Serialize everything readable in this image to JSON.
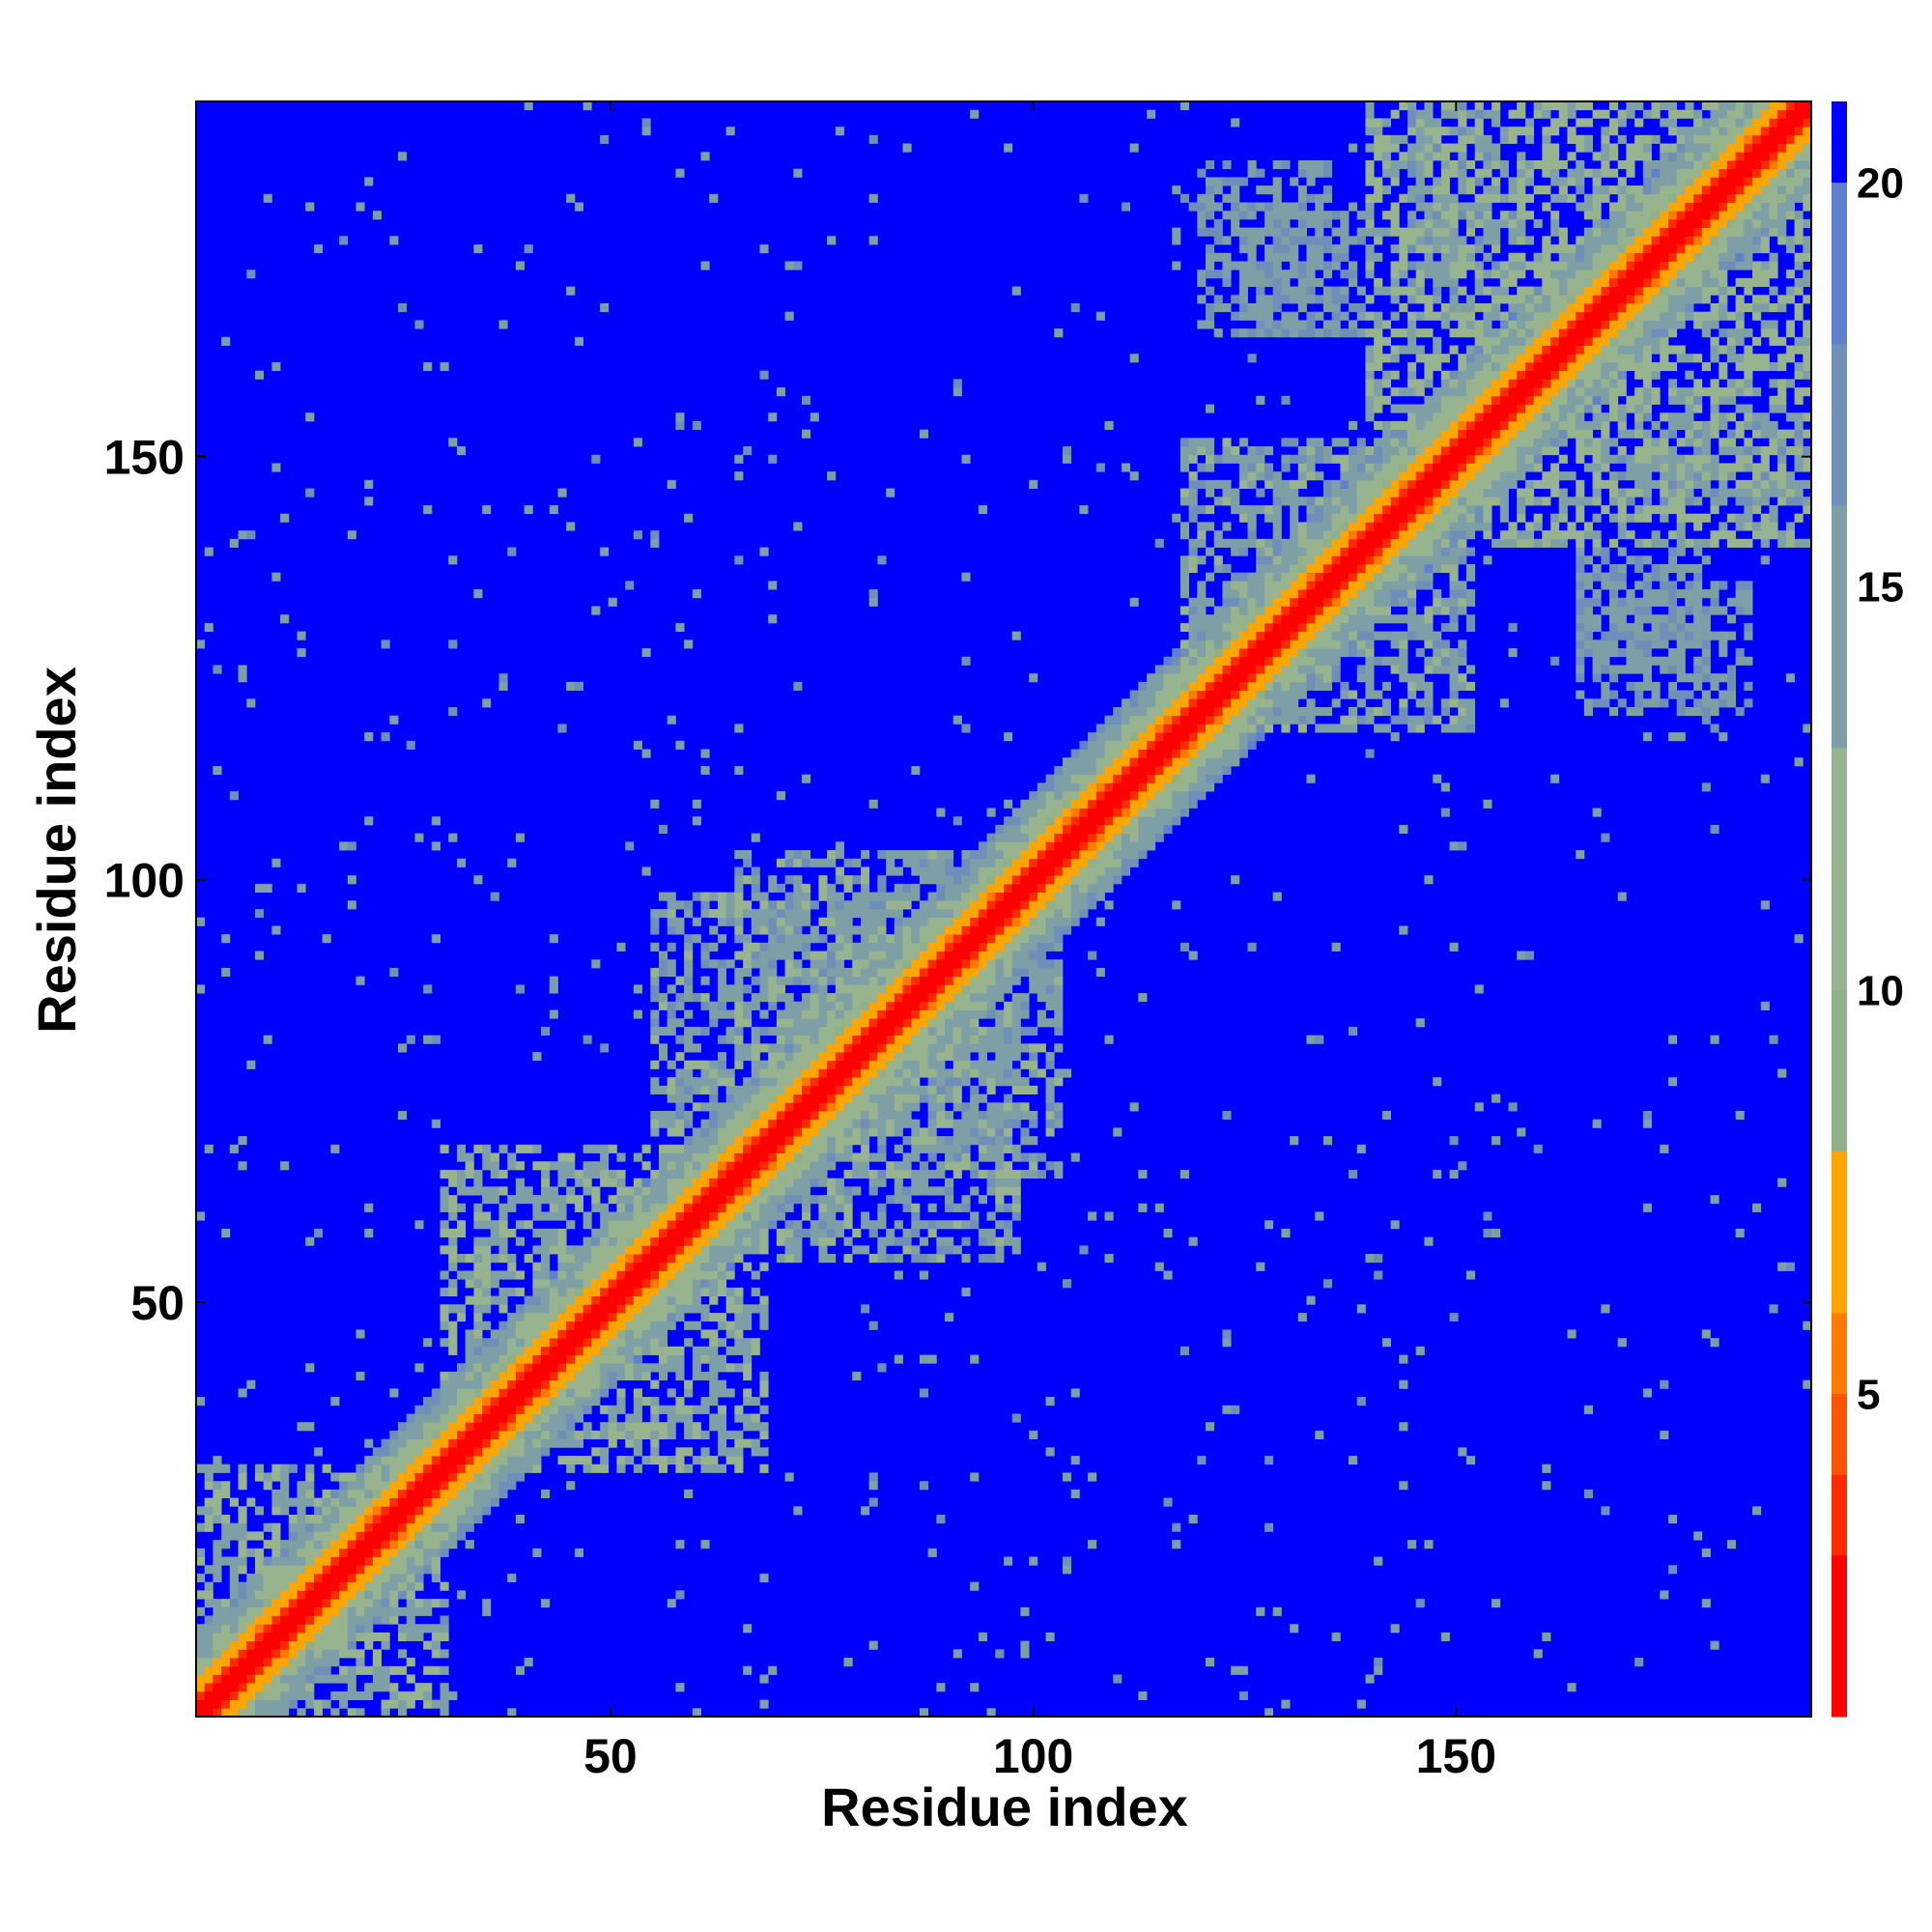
{
  "chart_data": {
    "type": "heatmap",
    "title": "",
    "xlabel": "Residue index",
    "ylabel": "Residue index",
    "n_residues": 192,
    "xlim": [
      1,
      192
    ],
    "ylim": [
      1,
      192
    ],
    "x_ticks": [
      50,
      100,
      150
    ],
    "y_ticks": [
      50,
      100,
      150
    ],
    "colorbar": {
      "ticks": [
        5,
        10,
        15,
        20
      ],
      "range": [
        1,
        21
      ],
      "colors": [
        "#ff0000",
        "#ff2a00",
        "#ff5500",
        "#ff7a00",
        "#ffa500",
        "#8fb08a",
        "#97b48f",
        "#7f9fa6",
        "#6f8fb8",
        "#5f7fcf",
        "#0000ff"
      ],
      "color_breaks": [
        1,
        3,
        4,
        5,
        6,
        8,
        10,
        13,
        16,
        18,
        20,
        21
      ]
    },
    "description_values": {
      "diagonal_distance": 1,
      "near_diagonal_distance": 5,
      "background_distance": 21,
      "contact_blocks": [
        {
          "x": [
            5,
            30
          ],
          "y": [
            1,
            28
          ],
          "d": 13
        },
        {
          "x": [
            30,
            66
          ],
          "y": [
            40,
            68
          ],
          "d": 13
        },
        {
          "x": [
            55,
            85
          ],
          "y": [
            70,
            98
          ],
          "d": 14
        },
        {
          "x": [
            80,
            103
          ],
          "y": [
            65,
            90
          ],
          "d": 14
        },
        {
          "x": [
            118,
            140
          ],
          "y": [
            125,
            152
          ],
          "d": 14
        },
        {
          "x": [
            125,
            140
          ],
          "y": [
            165,
            180
          ],
          "d": 15
        },
        {
          "x": [
            140,
            192
          ],
          "y": [
            140,
            192
          ],
          "d": 12
        },
        {
          "x": [
            165,
            185
          ],
          "y": [
            120,
            135
          ],
          "d": 15
        },
        {
          "x": [
            168,
            192
          ],
          "y": [
            145,
            155
          ],
          "d": 15
        }
      ]
    }
  }
}
